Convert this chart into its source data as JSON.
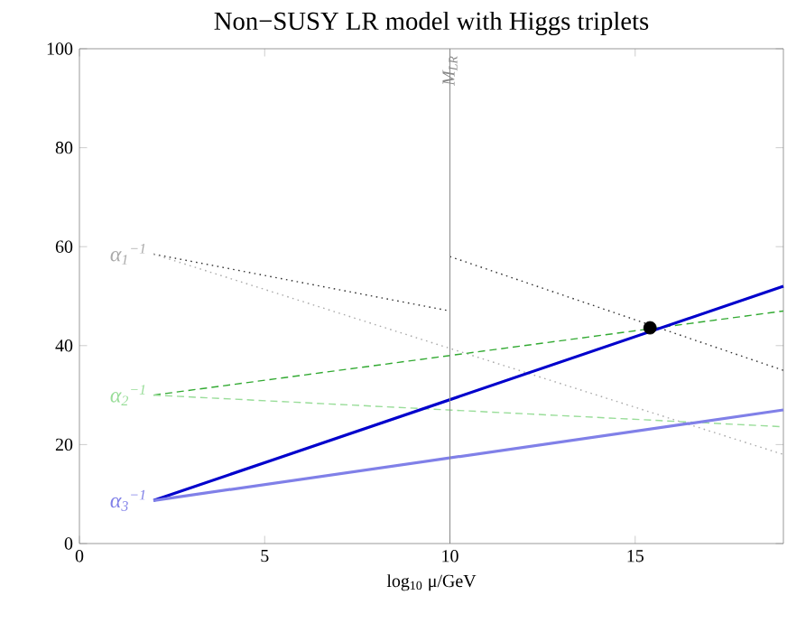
{
  "chart_data": {
    "type": "line",
    "title": "Non−SUSY LR model with Higgs triplets",
    "xlabel": "log$_{10}$ μ/GeV",
    "xlim": [
      0,
      19
    ],
    "ylim": [
      0,
      100
    ],
    "xticks": [
      0,
      5,
      10,
      15
    ],
    "yticks": [
      0,
      20,
      40,
      60,
      80,
      100
    ],
    "grid": false,
    "series": [
      {
        "color": "#333333",
        "line_style": "dotted",
        "x": [
          2,
          10
        ],
        "values": [
          58.5,
          47
        ]
      },
      {
        "color": "#333333",
        "line_style": "dotted",
        "x": [
          10,
          19
        ],
        "values": [
          58,
          35
        ]
      },
      {
        "name": "α$_{1}$$^{−1}$",
        "color": "#aaaaaa",
        "line_style": "dotted",
        "x": [
          2,
          19
        ],
        "values": [
          58.5,
          18
        ]
      },
      {
        "color": "#33aa33",
        "line_style": "dashed",
        "x": [
          2,
          19
        ],
        "values": [
          30,
          47
        ]
      },
      {
        "name": "α$_{2}$$^{−1}$",
        "color": "#99dd99",
        "line_style": "dashed",
        "x": [
          2,
          19
        ],
        "values": [
          30,
          23.6
        ]
      },
      {
        "color": "#0000cc",
        "line_style": "solid",
        "x": [
          2,
          19
        ],
        "values": [
          8.7,
          52
        ]
      },
      {
        "name": "α$_{3}$$^{−1}$",
        "color": "#8080e8",
        "line_style": "solid",
        "x": [
          2,
          19
        ],
        "values": [
          8.7,
          27
        ]
      },
      {
        "type": "scatter",
        "marker": "circle",
        "color": "#000000",
        "x": [
          15.4
        ],
        "values": [
          43.6
        ]
      }
    ],
    "ref_lines": [
      {
        "axis": "x",
        "value": 10,
        "label": "M$_{LR}$",
        "color": "#888888"
      }
    ]
  }
}
